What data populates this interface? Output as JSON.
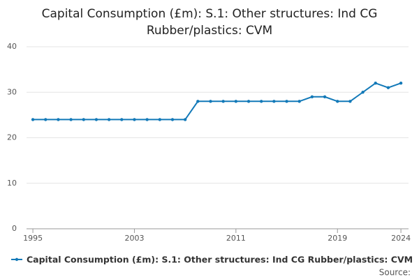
{
  "chart_data": {
    "type": "line",
    "title": "Capital Consumption (£m): S.1: Other structures: Ind CG Rubber/plastics: CVM",
    "x": [
      1995,
      1996,
      1997,
      1998,
      1999,
      2000,
      2001,
      2002,
      2003,
      2004,
      2005,
      2006,
      2007,
      2008,
      2009,
      2010,
      2011,
      2012,
      2013,
      2014,
      2015,
      2016,
      2017,
      2018,
      2019,
      2020,
      2021,
      2022,
      2023,
      2024
    ],
    "series": [
      {
        "name": "Capital Consumption (£m): S.1: Other structures: Ind CG Rubber/plastics: CVM",
        "color": "#1279b8",
        "values": [
          24,
          24,
          24,
          24,
          24,
          24,
          24,
          24,
          24,
          24,
          24,
          24,
          24,
          28,
          28,
          28,
          28,
          28,
          28,
          28,
          28,
          28,
          29,
          29,
          28,
          28,
          30,
          32,
          31,
          32
        ]
      }
    ],
    "xlim": [
      1994.5,
      2024.6
    ],
    "xticks": [
      1995,
      2003,
      2011,
      2019,
      2024
    ],
    "ylim": [
      0,
      40
    ],
    "yticks": [
      0,
      10,
      20,
      30,
      40
    ],
    "grid": true,
    "source": "Source:"
  }
}
